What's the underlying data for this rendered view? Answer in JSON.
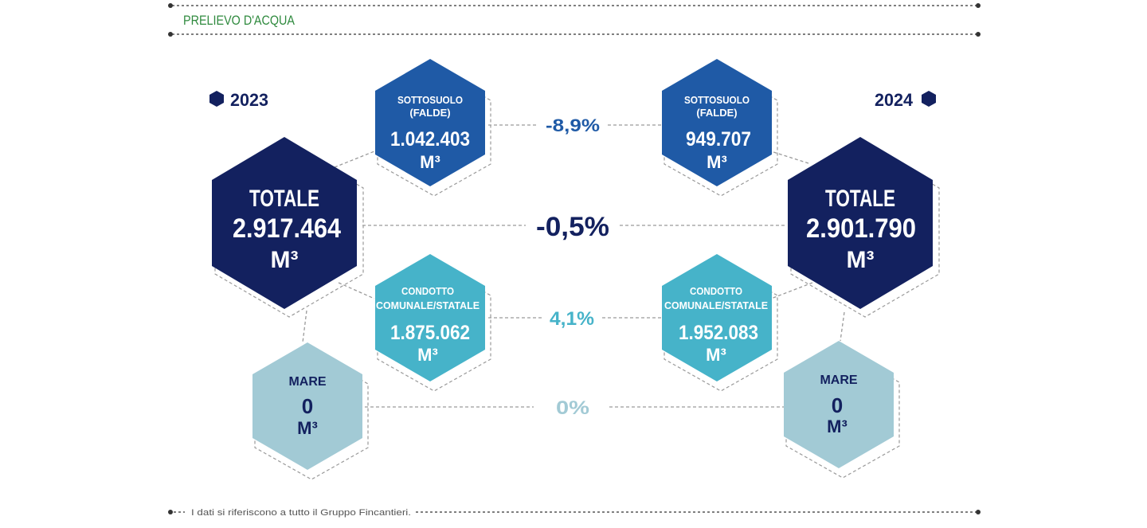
{
  "header": {
    "title": "PRELIEVO D'ACQUA"
  },
  "years": {
    "left": "2023",
    "right": "2024"
  },
  "colors": {
    "navy": "#13215f",
    "blue": "#1f5aa6",
    "teal": "#46b3c9",
    "lightblue": "#a2cad5",
    "green": "#2f8a3e",
    "line": "#9a9a9a"
  },
  "hexes": {
    "total_2023": {
      "title": "TOTALE",
      "value": "2.917.464",
      "unit": "M³"
    },
    "total_2024": {
      "title": "TOTALE",
      "value": "2.901.790",
      "unit": "M³"
    },
    "falde_2023": {
      "line1": "SOTTOSUOLO",
      "line2": "(FALDE)",
      "value": "1.042.403",
      "unit": "M³"
    },
    "falde_2024": {
      "line1": "SOTTOSUOLO",
      "line2": "(FALDE)",
      "value": "949.707",
      "unit": "M³"
    },
    "condotto_2023": {
      "line1": "CONDOTTO",
      "line2": "COMUNALE/STATALE",
      "value": "1.875.062",
      "unit": "M³"
    },
    "condotto_2024": {
      "line1": "CONDOTTO",
      "line2": "COMUNALE/STATALE",
      "value": "1.952.083",
      "unit": "M³"
    },
    "mare_2023": {
      "title": "MARE",
      "value": "0",
      "unit": "M³"
    },
    "mare_2024": {
      "title": "MARE",
      "value": "0",
      "unit": "M³"
    }
  },
  "changes": {
    "falde": "-8,9%",
    "totale": "-0,5%",
    "condotto": "4,1%",
    "mare": "0%"
  },
  "footer": {
    "note": "I dati si riferiscono a tutto il Gruppo Fincantieri."
  }
}
